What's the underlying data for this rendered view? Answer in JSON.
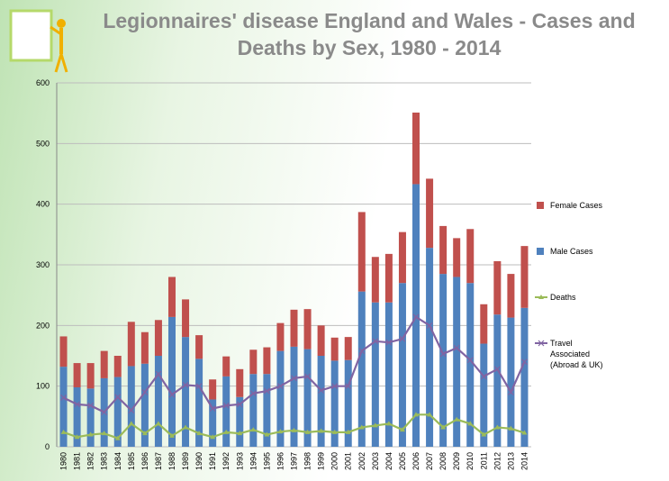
{
  "chart_data": {
    "type": "bar",
    "title": "Legionnaires' disease England and Wales - Cases and Deaths by Sex, 1980 - 2014",
    "categories": [
      "1980",
      "1981",
      "1982",
      "1983",
      "1984",
      "1985",
      "1986",
      "1987",
      "1988",
      "1989",
      "1990",
      "1991",
      "1992",
      "1993",
      "1994",
      "1995",
      "1996",
      "1997",
      "1998",
      "1999",
      "2000",
      "2001",
      "2002",
      "2003",
      "2004",
      "2005",
      "2006",
      "2007",
      "2008",
      "2009",
      "2010",
      "2011",
      "2012",
      "2013",
      "2014"
    ],
    "series": [
      {
        "name": "Male Cases",
        "kind": "bar",
        "color": "#4f81bd",
        "values": [
          132,
          98,
          96,
          113,
          115,
          133,
          137,
          150,
          214,
          181,
          145,
          78,
          116,
          82,
          120,
          120,
          158,
          165,
          161,
          150,
          142,
          143,
          256,
          238,
          238,
          270,
          433,
          328,
          285,
          280,
          270,
          170,
          218,
          213,
          229
        ]
      },
      {
        "name": "Female Cases",
        "kind": "bar",
        "color": "#c0504d",
        "values": [
          50,
          40,
          42,
          45,
          35,
          73,
          52,
          59,
          66,
          62,
          39,
          33,
          33,
          46,
          40,
          44,
          46,
          61,
          66,
          50,
          38,
          38,
          131,
          75,
          80,
          84,
          118,
          114,
          79,
          64,
          89,
          65,
          88,
          72,
          102
        ]
      },
      {
        "name": "Deaths",
        "kind": "line",
        "color": "#9bbb59",
        "values": [
          24,
          16,
          20,
          22,
          14,
          38,
          22,
          38,
          18,
          32,
          22,
          16,
          24,
          22,
          28,
          20,
          25,
          27,
          24,
          26,
          24,
          24,
          32,
          35,
          38,
          28,
          53,
          53,
          32,
          45,
          38,
          20,
          32,
          30,
          23
        ]
      },
      {
        "name": "Travel Associated (Abroad & UK)",
        "kind": "line",
        "color": "#8064a2",
        "values": [
          81,
          70,
          68,
          57,
          82,
          60,
          90,
          120,
          86,
          102,
          100,
          63,
          68,
          70,
          88,
          92,
          100,
          113,
          116,
          93,
          100,
          100,
          158,
          174,
          172,
          178,
          214,
          200,
          153,
          163,
          143,
          116,
          128,
          90,
          140
        ]
      }
    ],
    "legend_order": [
      1,
      0,
      2,
      3
    ],
    "ylim": [
      0,
      600
    ],
    "yticks": [
      0,
      100,
      200,
      300,
      400,
      500,
      600
    ],
    "grid": true
  }
}
